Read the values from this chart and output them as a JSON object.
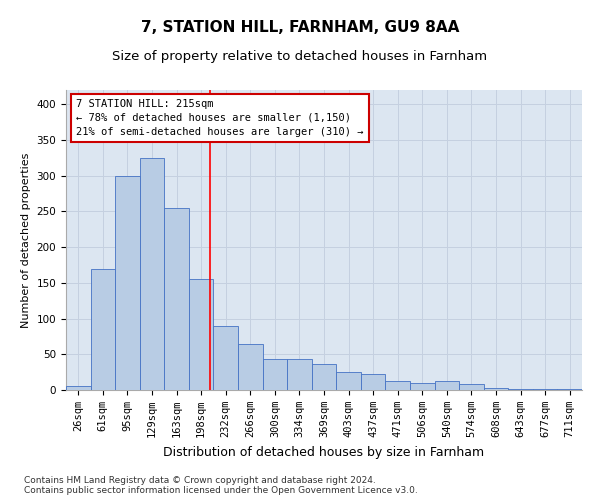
{
  "title1": "7, STATION HILL, FARNHAM, GU9 8AA",
  "title2": "Size of property relative to detached houses in Farnham",
  "xlabel": "Distribution of detached houses by size in Farnham",
  "ylabel": "Number of detached properties",
  "footnote": "Contains HM Land Registry data © Crown copyright and database right 2024.\nContains public sector information licensed under the Open Government Licence v3.0.",
  "bins": [
    "26sqm",
    "61sqm",
    "95sqm",
    "129sqm",
    "163sqm",
    "198sqm",
    "232sqm",
    "266sqm",
    "300sqm",
    "334sqm",
    "369sqm",
    "403sqm",
    "437sqm",
    "471sqm",
    "506sqm",
    "540sqm",
    "574sqm",
    "608sqm",
    "643sqm",
    "677sqm",
    "711sqm"
  ],
  "values": [
    5,
    170,
    300,
    325,
    255,
    155,
    90,
    65,
    43,
    43,
    37,
    25,
    22,
    13,
    10,
    13,
    8,
    3,
    1,
    2,
    2
  ],
  "bar_color": "#b8cce4",
  "bar_edge_color": "#4472c4",
  "grid_color": "#c5d0e0",
  "background_color": "#dce6f1",
  "annotation_box_color": "#ffffff",
  "annotation_border_color": "#cc0000",
  "redline_x": 5.35,
  "annotation_line1": "7 STATION HILL: 215sqm",
  "annotation_line2": "← 78% of detached houses are smaller (1,150)",
  "annotation_line3": "21% of semi-detached houses are larger (310) →",
  "ylim": [
    0,
    420
  ],
  "yticks": [
    0,
    50,
    100,
    150,
    200,
    250,
    300,
    350,
    400
  ],
  "title1_fontsize": 11,
  "title2_fontsize": 9.5,
  "xlabel_fontsize": 9,
  "ylabel_fontsize": 8,
  "tick_fontsize": 7.5,
  "annotation_fontsize": 7.5,
  "footnote_fontsize": 6.5
}
